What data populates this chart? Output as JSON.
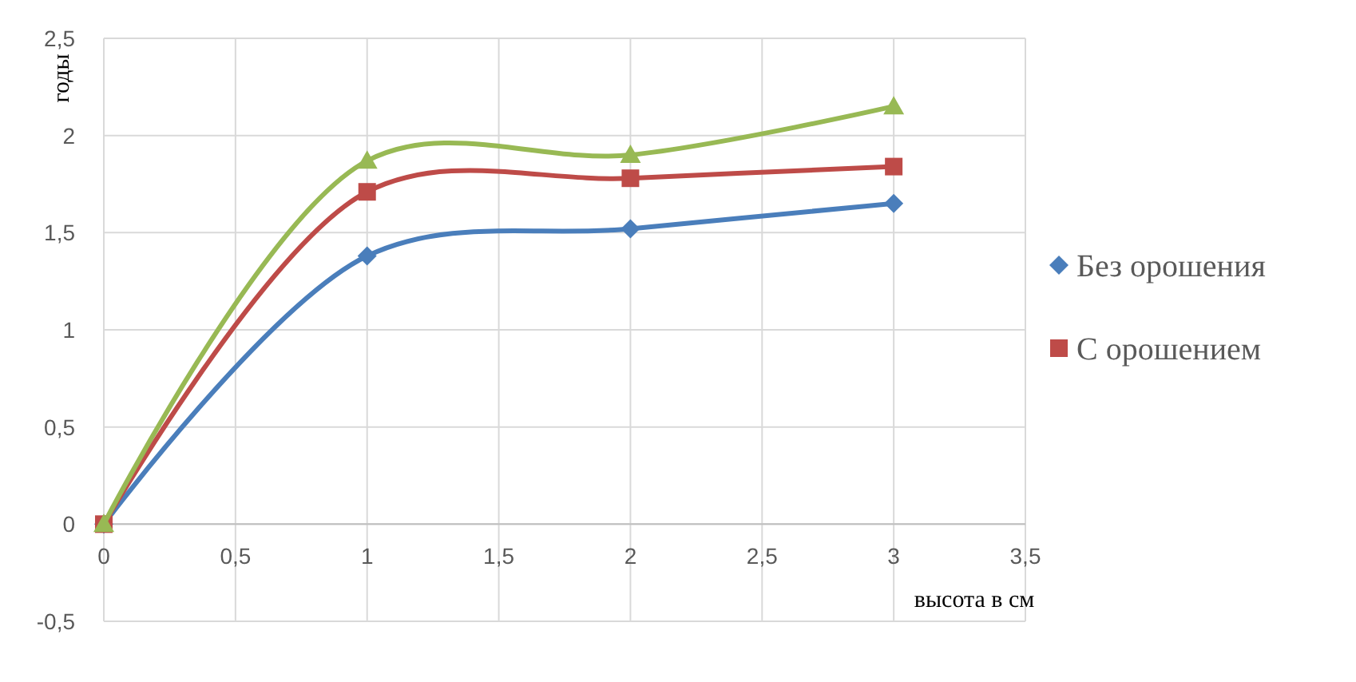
{
  "chart_data": {
    "type": "line",
    "ylabel": "годы",
    "xlabel": "высота в см",
    "x": [
      0,
      1,
      2,
      3
    ],
    "series": [
      {
        "name": "Без орошения",
        "color": "#4a7ebb",
        "marker": "diamond",
        "values": [
          0,
          1.38,
          1.52,
          1.65
        ]
      },
      {
        "name": "С орошением",
        "color": "#be4b48",
        "marker": "square",
        "values": [
          0,
          1.71,
          1.78,
          1.84
        ]
      },
      {
        "color": "#98b954",
        "marker": "triangle",
        "values": [
          0,
          1.87,
          1.9,
          2.15
        ]
      }
    ],
    "xlim": [
      0,
      3.5
    ],
    "xticks": [
      {
        "value": 0,
        "label": "0"
      },
      {
        "value": 0.5,
        "label": "0,5"
      },
      {
        "value": 1,
        "label": "1"
      },
      {
        "value": 1.5,
        "label": "1,5"
      },
      {
        "value": 2,
        "label": "2"
      },
      {
        "value": 2.5,
        "label": "2,5"
      },
      {
        "value": 3,
        "label": "3"
      },
      {
        "value": 3.5,
        "label": "3,5"
      }
    ],
    "ylim": [
      -0.5,
      2.5
    ],
    "yticks": [
      {
        "value": -0.5,
        "label": "-0,5"
      },
      {
        "value": 0,
        "label": "0"
      },
      {
        "value": 0.5,
        "label": "0,5"
      },
      {
        "value": 1,
        "label": "1"
      },
      {
        "value": 1.5,
        "label": "1,5"
      },
      {
        "value": 2,
        "label": "2"
      },
      {
        "value": 2.5,
        "label": "2,5"
      }
    ],
    "grid": true,
    "legend": "right",
    "line_style": "solid"
  }
}
